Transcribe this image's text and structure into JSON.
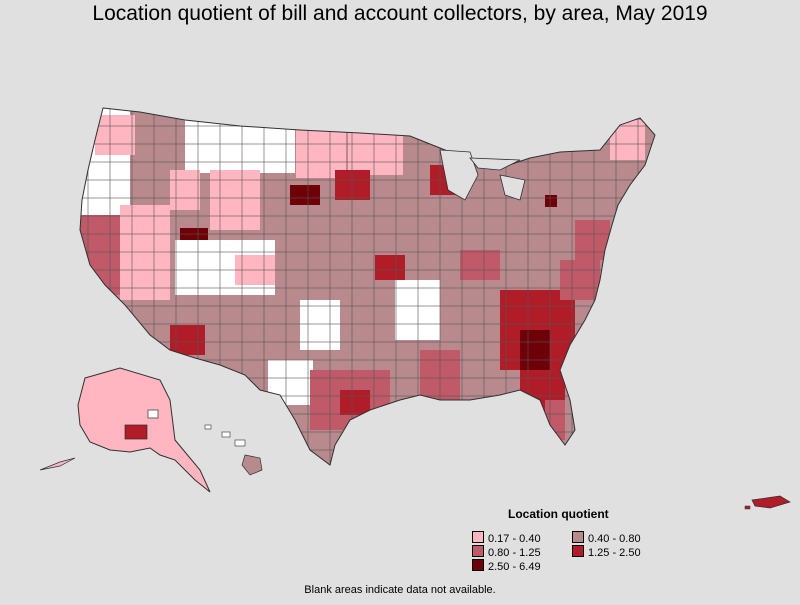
{
  "title": "Location quotient of bill and account collectors, by area, May 2019",
  "legend": {
    "title": "Location quotient",
    "items": [
      {
        "label": "0.17 - 0.40",
        "color": "#ffb6c1"
      },
      {
        "label": "0.40 - 0.80",
        "color": "#b88a8e"
      },
      {
        "label": "0.80 - 1.25",
        "color": "#c05a68"
      },
      {
        "label": "1.25 - 2.50",
        "color": "#b01c28"
      },
      {
        "label": "2.50 - 6.49",
        "color": "#6e0008"
      }
    ]
  },
  "footnote": "Blank areas indicate data not available.",
  "colors": {
    "background": "#e0e0e0",
    "no_data": "#ffffff",
    "border": "#303030"
  }
}
